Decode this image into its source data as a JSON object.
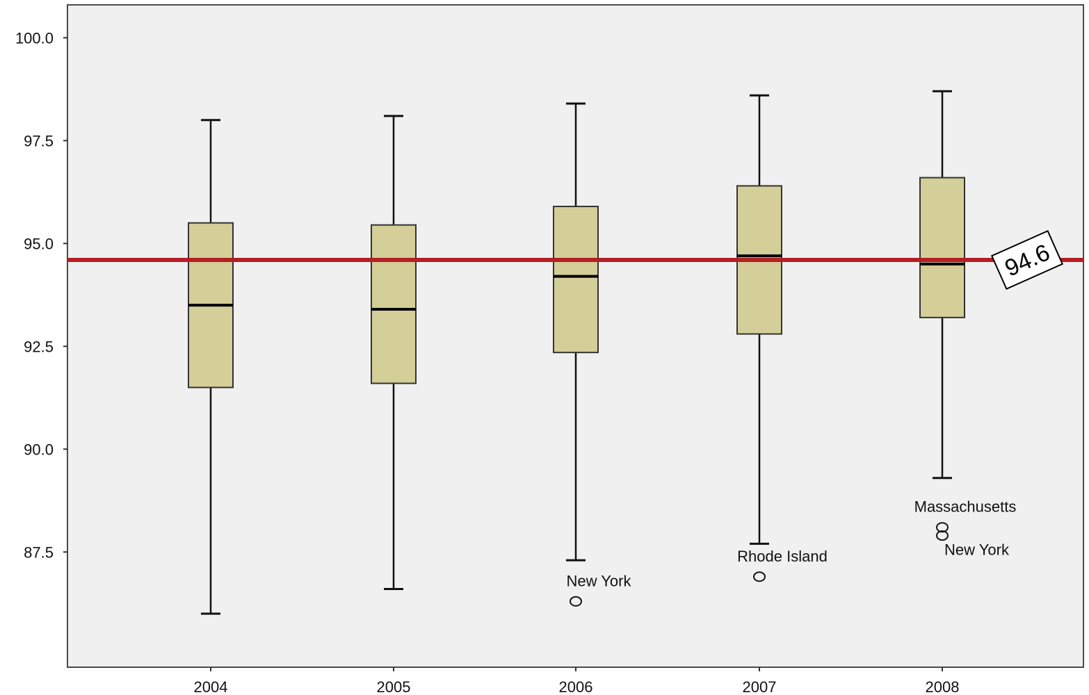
{
  "chart_data": {
    "type": "boxplot",
    "title": "",
    "xlabel": "",
    "ylabel": "",
    "ylim": [
      84.7,
      100.8
    ],
    "yticks": [
      87.5,
      90.0,
      92.5,
      95.0,
      97.5,
      100.0
    ],
    "ytick_labels": [
      "87.5",
      "90.0",
      "92.5",
      "95.0",
      "97.5",
      "100.0"
    ],
    "grid": false,
    "categories": [
      "2004",
      "2005",
      "2006",
      "2007",
      "2008"
    ],
    "boxes": [
      {
        "category": "2004",
        "whisker_low": 86.0,
        "q1": 91.5,
        "median": 93.5,
        "q3": 95.5,
        "whisker_high": 98.0,
        "outliers": []
      },
      {
        "category": "2005",
        "whisker_low": 86.6,
        "q1": 91.6,
        "median": 93.4,
        "q3": 95.45,
        "whisker_high": 98.1,
        "outliers": []
      },
      {
        "category": "2006",
        "whisker_low": 87.3,
        "q1": 92.35,
        "median": 94.2,
        "q3": 95.9,
        "whisker_high": 98.4,
        "outliers": [
          {
            "value": 86.3,
            "label": "New York"
          }
        ]
      },
      {
        "category": "2007",
        "whisker_low": 87.7,
        "q1": 92.8,
        "median": 94.7,
        "q3": 96.4,
        "whisker_high": 98.6,
        "outliers": [
          {
            "value": 86.9,
            "label": "Rhode Island"
          }
        ]
      },
      {
        "category": "2008",
        "whisker_low": 89.3,
        "q1": 93.2,
        "median": 94.5,
        "q3": 96.6,
        "whisker_high": 98.7,
        "outliers": [
          {
            "value": 88.1,
            "label": "Massachusetts"
          },
          {
            "value": 87.9,
            "label": "New York"
          }
        ]
      }
    ],
    "reference_line": {
      "value": 94.6,
      "label": "94.6",
      "color": "#b51f24"
    },
    "colors": {
      "plot_background": "#f0f0f0",
      "box_fill": "#d4ce98",
      "box_stroke": "#333333",
      "whisker": "#111111",
      "median": "#000000"
    }
  }
}
